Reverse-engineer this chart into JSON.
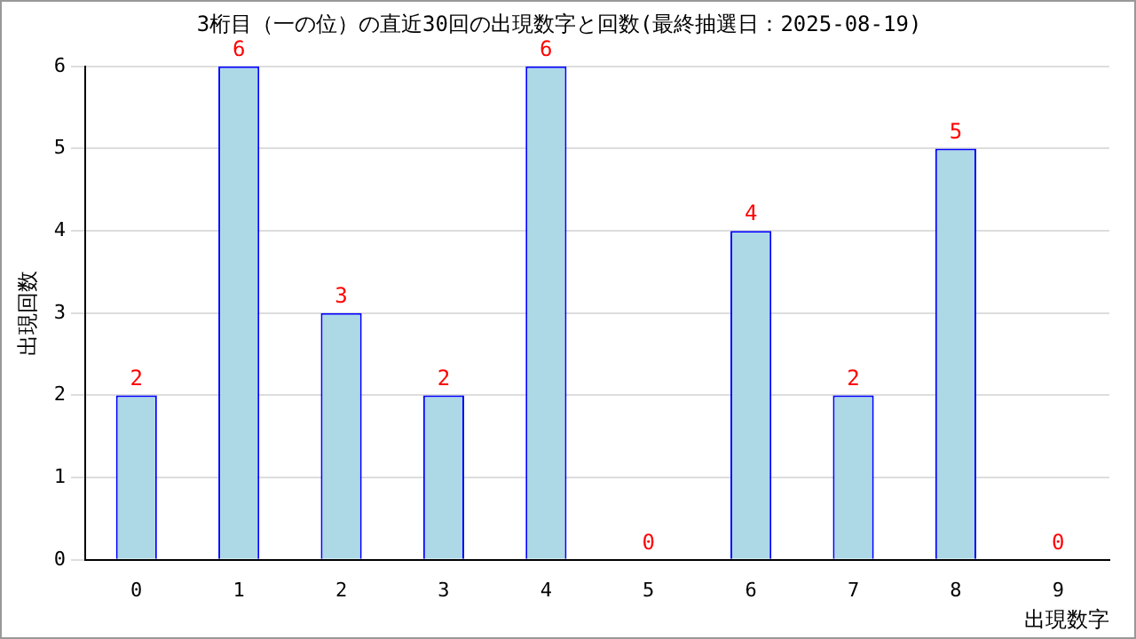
{
  "chart_data": {
    "type": "bar",
    "title": "3桁目（一の位）の直近30回の出現数字と回数(最終抽選日：2025-08-19)",
    "xlabel": "出現数字",
    "ylabel": "出現回数",
    "categories": [
      "0",
      "1",
      "2",
      "3",
      "4",
      "5",
      "6",
      "7",
      "8",
      "9"
    ],
    "series": [
      {
        "color": "#add8e6",
        "values": [
          2,
          6,
          3,
          2,
          6,
          0,
          4,
          2,
          5,
          0
        ]
      }
    ],
    "ylim": [
      0,
      6
    ],
    "yticks": [
      0,
      1,
      2,
      3,
      4,
      5,
      6
    ],
    "grid": "y",
    "data_labels": true,
    "legend": false
  }
}
